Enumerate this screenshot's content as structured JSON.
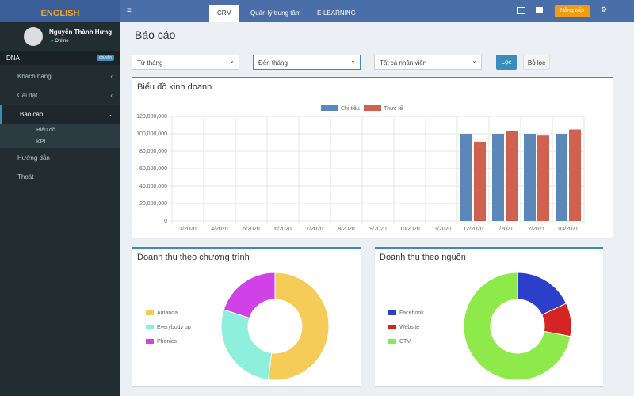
{
  "logo": "ENGLISH",
  "sidebar": {
    "user_name": "Nguyễn Thành Hưng",
    "status": "Online",
    "org": "DNA",
    "org_badge": "chuyên",
    "menu": [
      "Khách hàng",
      "Cài đặt",
      "Báo cáo",
      "Biểu đồ",
      "KPI",
      "Hướng dẫn",
      "Thoát"
    ]
  },
  "topbar": {
    "tabs": [
      "CRM",
      "Quản lý trung tâm",
      "E-LEARNING"
    ],
    "upgrade": "Nâng cấp"
  },
  "page": {
    "title": "Báo cáo",
    "filters": [
      "Từ tháng",
      "Đến tháng",
      "Tất cả nhân viên"
    ],
    "buttons": [
      "Lọc",
      "Bỏ lọc"
    ]
  },
  "chart_data": [
    {
      "type": "bar",
      "title": "Biểu đồ kinh doanh",
      "categories": [
        "3/2020",
        "4/2020",
        "5/2020",
        "6/2020",
        "7/2020",
        "8/2020",
        "9/2020",
        "10/2020",
        "11/2020",
        "12/2020",
        "1/2021",
        "2/2021",
        "03/2021"
      ],
      "series": [
        {
          "name": "Chỉ tiêu",
          "color": "#5b88b9",
          "values": [
            0,
            0,
            0,
            0,
            0,
            0,
            0,
            0,
            0,
            100000000,
            100000000,
            100000000,
            100000000
          ]
        },
        {
          "name": "Thực tế",
          "color": "#d1614f",
          "values": [
            0,
            0,
            0,
            0,
            0,
            0,
            0,
            0,
            0,
            91000000,
            103000000,
            98000000,
            105000000
          ]
        }
      ],
      "ylim": [
        0,
        120000000
      ],
      "yticks": [
        0,
        {
          "value": 20000000,
          "label": "20,000,000"
        },
        {
          "value": 40000000,
          "label": "40,000,000"
        },
        {
          "value": 60000000,
          "label": "60,000,000"
        },
        {
          "value": 80000000,
          "label": "80,000,000"
        },
        {
          "value": 100000000,
          "label": "100,000,000"
        },
        {
          "value": 120000000,
          "label": "120,000,000"
        }
      ],
      "grid": true
    },
    {
      "type": "pie",
      "title": "Doanh thu theo chương trình",
      "labels": [
        "Amanda",
        "Everybody up",
        "Phonics"
      ],
      "values": [
        52,
        28,
        20
      ],
      "colors": [
        "#f4cc57",
        "#8ef0dc",
        "#d042e8"
      ]
    },
    {
      "type": "pie",
      "title": "Doanh thu theo nguồn",
      "labels": [
        "Facebook",
        "Website",
        "CTV"
      ],
      "values": [
        18,
        10,
        72
      ],
      "colors": [
        "#2c3fc9",
        "#d62424",
        "#8ee94a"
      ]
    }
  ]
}
